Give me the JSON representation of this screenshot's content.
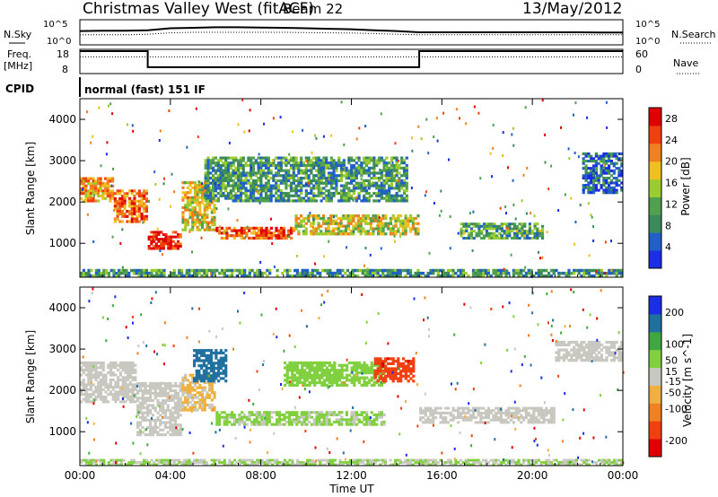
{
  "header": {
    "title": "Christmas Valley West (fitACF)",
    "beam": "Beam 22",
    "date": "13/May/2012"
  },
  "panel_labels": {
    "nsky": "N.Sky",
    "nsearch": "N.Search",
    "freq_top": "Freq.",
    "freq_unit": "[MHz]",
    "nave": "Nave",
    "cpid": "CPID",
    "cpid_value": "normal (fast) 151 IF",
    "noise_left_ticks": [
      "10^5",
      "10^0"
    ],
    "noise_right_ticks": [
      "10^5",
      "10^0"
    ],
    "freq_left_ticks": [
      "18",
      "8"
    ],
    "freq_right_ticks": [
      "60",
      "0"
    ]
  },
  "chart_data": [
    {
      "type": "heatmap",
      "panel": "power",
      "ylabel": "Slant Range [km]",
      "xlabel": "",
      "x_ticks": [
        "00:00",
        "04:00",
        "08:00",
        "12:00",
        "16:00",
        "20:00",
        "00:00"
      ],
      "y_ticks": [
        1000,
        2000,
        3000,
        4000
      ],
      "xlim": [
        0,
        24
      ],
      "ylim": [
        180,
        4500
      ],
      "colorbar": {
        "label": "Power [dB]",
        "ticks": [
          4,
          8,
          12,
          16,
          20,
          24,
          28
        ],
        "range": [
          0,
          30
        ],
        "colors": [
          "#1a2ee6",
          "#2060c8",
          "#3a8a5a",
          "#50a050",
          "#9acc30",
          "#f0c020",
          "#f08020",
          "#f04010",
          "#e00000"
        ]
      },
      "regions": [
        {
          "t0": 0.0,
          "t1": 1.5,
          "r0": 2000,
          "r1": 2600,
          "level": 0.7
        },
        {
          "t0": 1.5,
          "t1": 3.0,
          "r0": 1500,
          "r1": 2300,
          "level": 0.8
        },
        {
          "t0": 3.0,
          "t1": 4.5,
          "r0": 850,
          "r1": 1300,
          "level": 0.95
        },
        {
          "t0": 4.5,
          "t1": 6.0,
          "r0": 1300,
          "r1": 2500,
          "level": 0.6
        },
        {
          "t0": 6.0,
          "t1": 9.5,
          "r0": 1100,
          "r1": 1400,
          "level": 0.85
        },
        {
          "t0": 9.5,
          "t1": 15.0,
          "r0": 1200,
          "r1": 1700,
          "level": 0.55
        },
        {
          "t0": 5.5,
          "t1": 14.5,
          "r0": 2000,
          "r1": 3100,
          "level": 0.3
        },
        {
          "t0": 16.8,
          "t1": 20.5,
          "r0": 1100,
          "r1": 1500,
          "level": 0.35
        },
        {
          "t0": 22.2,
          "t1": 24.0,
          "r0": 2200,
          "r1": 3200,
          "level": 0.15
        },
        {
          "t0": 0.0,
          "t1": 24.0,
          "r0": 180,
          "r1": 380,
          "level": 0.3
        }
      ]
    },
    {
      "type": "heatmap",
      "panel": "velocity",
      "ylabel": "Slant Range [km]",
      "xlabel": "Time UT",
      "x_ticks": [
        "00:00",
        "04:00",
        "08:00",
        "12:00",
        "16:00",
        "20:00",
        "00:00"
      ],
      "y_ticks": [
        1000,
        2000,
        3000,
        4000
      ],
      "xlim": [
        0,
        24
      ],
      "ylim": [
        180,
        4500
      ],
      "colorbar": {
        "label": "Velocity [m s^-1]",
        "ticks": [
          200,
          100,
          50,
          15,
          -15,
          -50,
          -100,
          -200
        ],
        "range": [
          -250,
          250
        ],
        "colors": [
          "#e00000",
          "#f04010",
          "#f08020",
          "#f0b040",
          "#c8c8c0",
          "#80d040",
          "#40a840",
          "#2070a0",
          "#1a2ee6"
        ]
      },
      "regions": [
        {
          "t0": 0.0,
          "t1": 2.5,
          "r0": 1700,
          "r1": 2700,
          "velocity": 0
        },
        {
          "t0": 2.5,
          "t1": 4.5,
          "r0": 900,
          "r1": 2200,
          "velocity": 0
        },
        {
          "t0": 4.5,
          "t1": 6.0,
          "r0": 1500,
          "r1": 2400,
          "velocity": -40
        },
        {
          "t0": 5.0,
          "t1": 6.5,
          "r0": 2200,
          "r1": 3000,
          "velocity": 180
        },
        {
          "t0": 6.0,
          "t1": 13.5,
          "r0": 1150,
          "r1": 1500,
          "velocity": 40
        },
        {
          "t0": 9.0,
          "t1": 13.5,
          "r0": 2100,
          "r1": 2700,
          "velocity": 60
        },
        {
          "t0": 13.0,
          "t1": 14.8,
          "r0": 2200,
          "r1": 2800,
          "velocity": -200
        },
        {
          "t0": 15.0,
          "t1": 21.0,
          "r0": 1200,
          "r1": 1600,
          "velocity": 0
        },
        {
          "t0": 21.0,
          "t1": 24.0,
          "r0": 2700,
          "r1": 3200,
          "velocity": 0
        },
        {
          "t0": 0.0,
          "t1": 24.0,
          "r0": 180,
          "r1": 340,
          "velocity": 30
        }
      ]
    }
  ],
  "noise_series": {
    "nsky": [
      0.55,
      0.56,
      0.56,
      0.58,
      0.66,
      0.68,
      0.7,
      0.7,
      0.69,
      0.68,
      0.66,
      0.64,
      0.62,
      0.58,
      0.55,
      0.5,
      0.5,
      0.5,
      0.5,
      0.5,
      0.5,
      0.5,
      0.5,
      0.49,
      0.49
    ],
    "nsearch": [
      0.4,
      0.4,
      0.4,
      0.42,
      0.48,
      0.5,
      0.5,
      0.5,
      0.5,
      0.5,
      0.49,
      0.48,
      0.47,
      0.45,
      0.42,
      0.4,
      0.4,
      0.4,
      0.4,
      0.4,
      0.4,
      0.4,
      0.4,
      0.4,
      0.4
    ]
  },
  "freq_series": {
    "freq": [
      [
        0,
        1
      ],
      [
        3.0,
        1
      ],
      [
        3.0,
        0.22
      ],
      [
        15.0,
        0.22
      ],
      [
        15.0,
        1
      ],
      [
        24,
        1
      ]
    ],
    "nave": [
      [
        0,
        0.72
      ],
      [
        24,
        0.72
      ]
    ]
  }
}
